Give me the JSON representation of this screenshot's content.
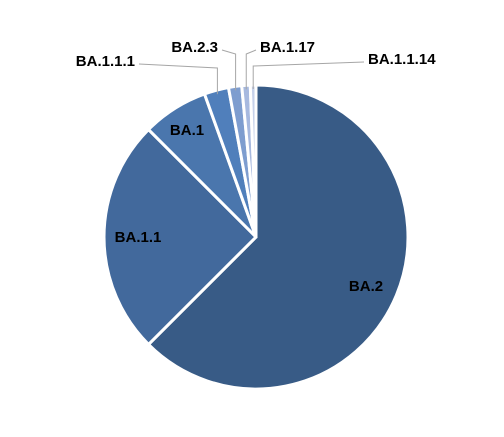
{
  "chart_data": {
    "type": "pie",
    "categories": [
      "BA.2",
      "BA.1.1",
      "BA.1",
      "BA.1.1.1",
      "BA.2.3",
      "BA.1.17",
      "BA.1.1.14"
    ],
    "values": [
      62.5,
      25,
      7,
      2.6,
      1.4,
      0.9,
      0.6
    ],
    "colors": [
      "#385b86",
      "#42699c",
      "#4a76ad",
      "#507fbb",
      "#7e9dcf",
      "#a7b9df",
      "#c6d1ea"
    ]
  }
}
